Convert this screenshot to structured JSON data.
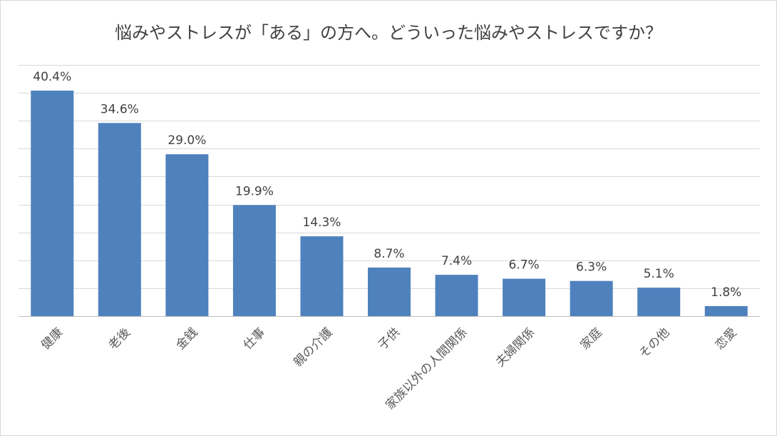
{
  "chart_data": {
    "type": "bar",
    "title": "悩みやストレスが「ある」の方へ。どういった悩みやストレスですか？",
    "xlabel": "",
    "ylabel": "",
    "categories": [
      "健康",
      "老後",
      "金銭",
      "仕事",
      "親の介護",
      "子供",
      "家族以外の人間関係",
      "夫婦関係",
      "家庭",
      "その他",
      "恋愛"
    ],
    "values": [
      40.4,
      34.6,
      29.0,
      19.9,
      14.3,
      8.7,
      7.4,
      6.7,
      6.3,
      5.1,
      1.8
    ],
    "data_labels": [
      "40.4%",
      "34.6%",
      "29.0%",
      "19.9%",
      "14.3%",
      "8.7%",
      "7.4%",
      "6.7%",
      "6.3%",
      "5.1%",
      "1.8%"
    ],
    "ylim": [
      0,
      45
    ],
    "grid": true,
    "legend": "none",
    "colors": {
      "bar": "#4f81bd",
      "grid": "#d9d9d9",
      "axis": "#bfbfbf"
    }
  }
}
